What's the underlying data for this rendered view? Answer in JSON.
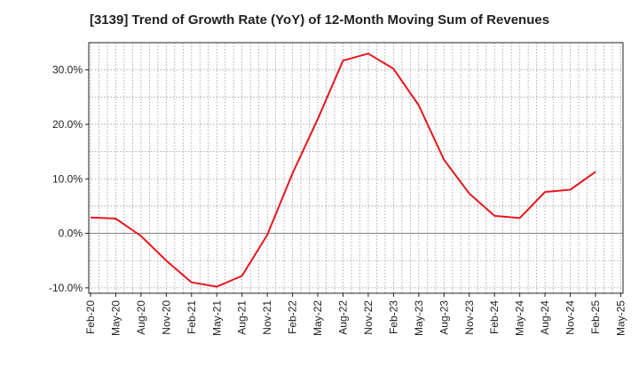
{
  "chart_data": {
    "type": "line",
    "title": "[3139]  Trend of Growth Rate (YoY) of 12-Month Moving Sum of Revenues",
    "xlabel": "",
    "ylabel": "",
    "x_tick_labels": [
      "Feb-20",
      "May-20",
      "Aug-20",
      "Nov-20",
      "Feb-21",
      "May-21",
      "Aug-21",
      "Nov-21",
      "Feb-22",
      "May-22",
      "Aug-22",
      "Nov-22",
      "Feb-23",
      "May-23",
      "Aug-23",
      "Nov-23",
      "Feb-24",
      "May-24",
      "Aug-24",
      "Nov-24",
      "Feb-25",
      "May-25"
    ],
    "y_ticks": [
      -10,
      0,
      10,
      20,
      30
    ],
    "y_tick_labels": [
      "-10.0%",
      "0.0%",
      "10.0%",
      "20.0%",
      "30.0%"
    ],
    "ylim": [
      -11,
      35
    ],
    "grid": true,
    "series": [
      {
        "color": "#e8161e",
        "x": [
          "Feb-20",
          "May-20",
          "Aug-20",
          "Nov-20",
          "Feb-21",
          "May-21",
          "Aug-21",
          "Nov-21",
          "Feb-22",
          "May-22",
          "Aug-22",
          "Nov-22",
          "Feb-23",
          "May-23",
          "Aug-23",
          "Nov-23",
          "Feb-24",
          "May-24",
          "Aug-24",
          "Nov-24",
          "Feb-25"
        ],
        "values": [
          2.9,
          2.7,
          -0.5,
          -5.0,
          -9.0,
          -9.8,
          -7.8,
          -0.3,
          11.0,
          21.0,
          31.7,
          33.0,
          30.2,
          23.5,
          13.5,
          7.3,
          3.2,
          2.8,
          7.6,
          8.0,
          11.3
        ]
      }
    ]
  }
}
